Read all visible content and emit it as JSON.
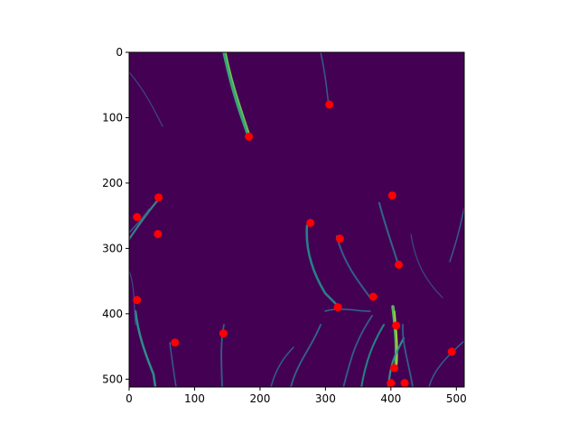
{
  "chart_data": {
    "type": "scatter",
    "background": "image",
    "colormap": "viridis",
    "xlim": [
      0,
      512
    ],
    "ylim": [
      512,
      0
    ],
    "y_inverted": true,
    "x_ticks": [
      0,
      100,
      200,
      300,
      400,
      500
    ],
    "y_ticks": [
      0,
      100,
      200,
      300,
      400,
      500
    ],
    "x_tick_labels": [
      "0",
      "100",
      "200",
      "300",
      "400",
      "500"
    ],
    "y_tick_labels": [
      "0",
      "100",
      "200",
      "300",
      "400",
      "500"
    ],
    "grid": false,
    "marker_color": "#ff0000",
    "image_background_color": "#440154",
    "points": [
      {
        "x": 306,
        "y": 80
      },
      {
        "x": 183,
        "y": 129
      },
      {
        "x": 45,
        "y": 222
      },
      {
        "x": 12,
        "y": 252
      },
      {
        "x": 44,
        "y": 278
      },
      {
        "x": 277,
        "y": 261
      },
      {
        "x": 322,
        "y": 285
      },
      {
        "x": 402,
        "y": 219
      },
      {
        "x": 412,
        "y": 325
      },
      {
        "x": 12,
        "y": 379
      },
      {
        "x": 373,
        "y": 374
      },
      {
        "x": 319,
        "y": 390
      },
      {
        "x": 408,
        "y": 418
      },
      {
        "x": 144,
        "y": 430
      },
      {
        "x": 70,
        "y": 444
      },
      {
        "x": 493,
        "y": 458
      },
      {
        "x": 405,
        "y": 483
      },
      {
        "x": 400,
        "y": 506
      },
      {
        "x": 421,
        "y": 506
      }
    ]
  }
}
